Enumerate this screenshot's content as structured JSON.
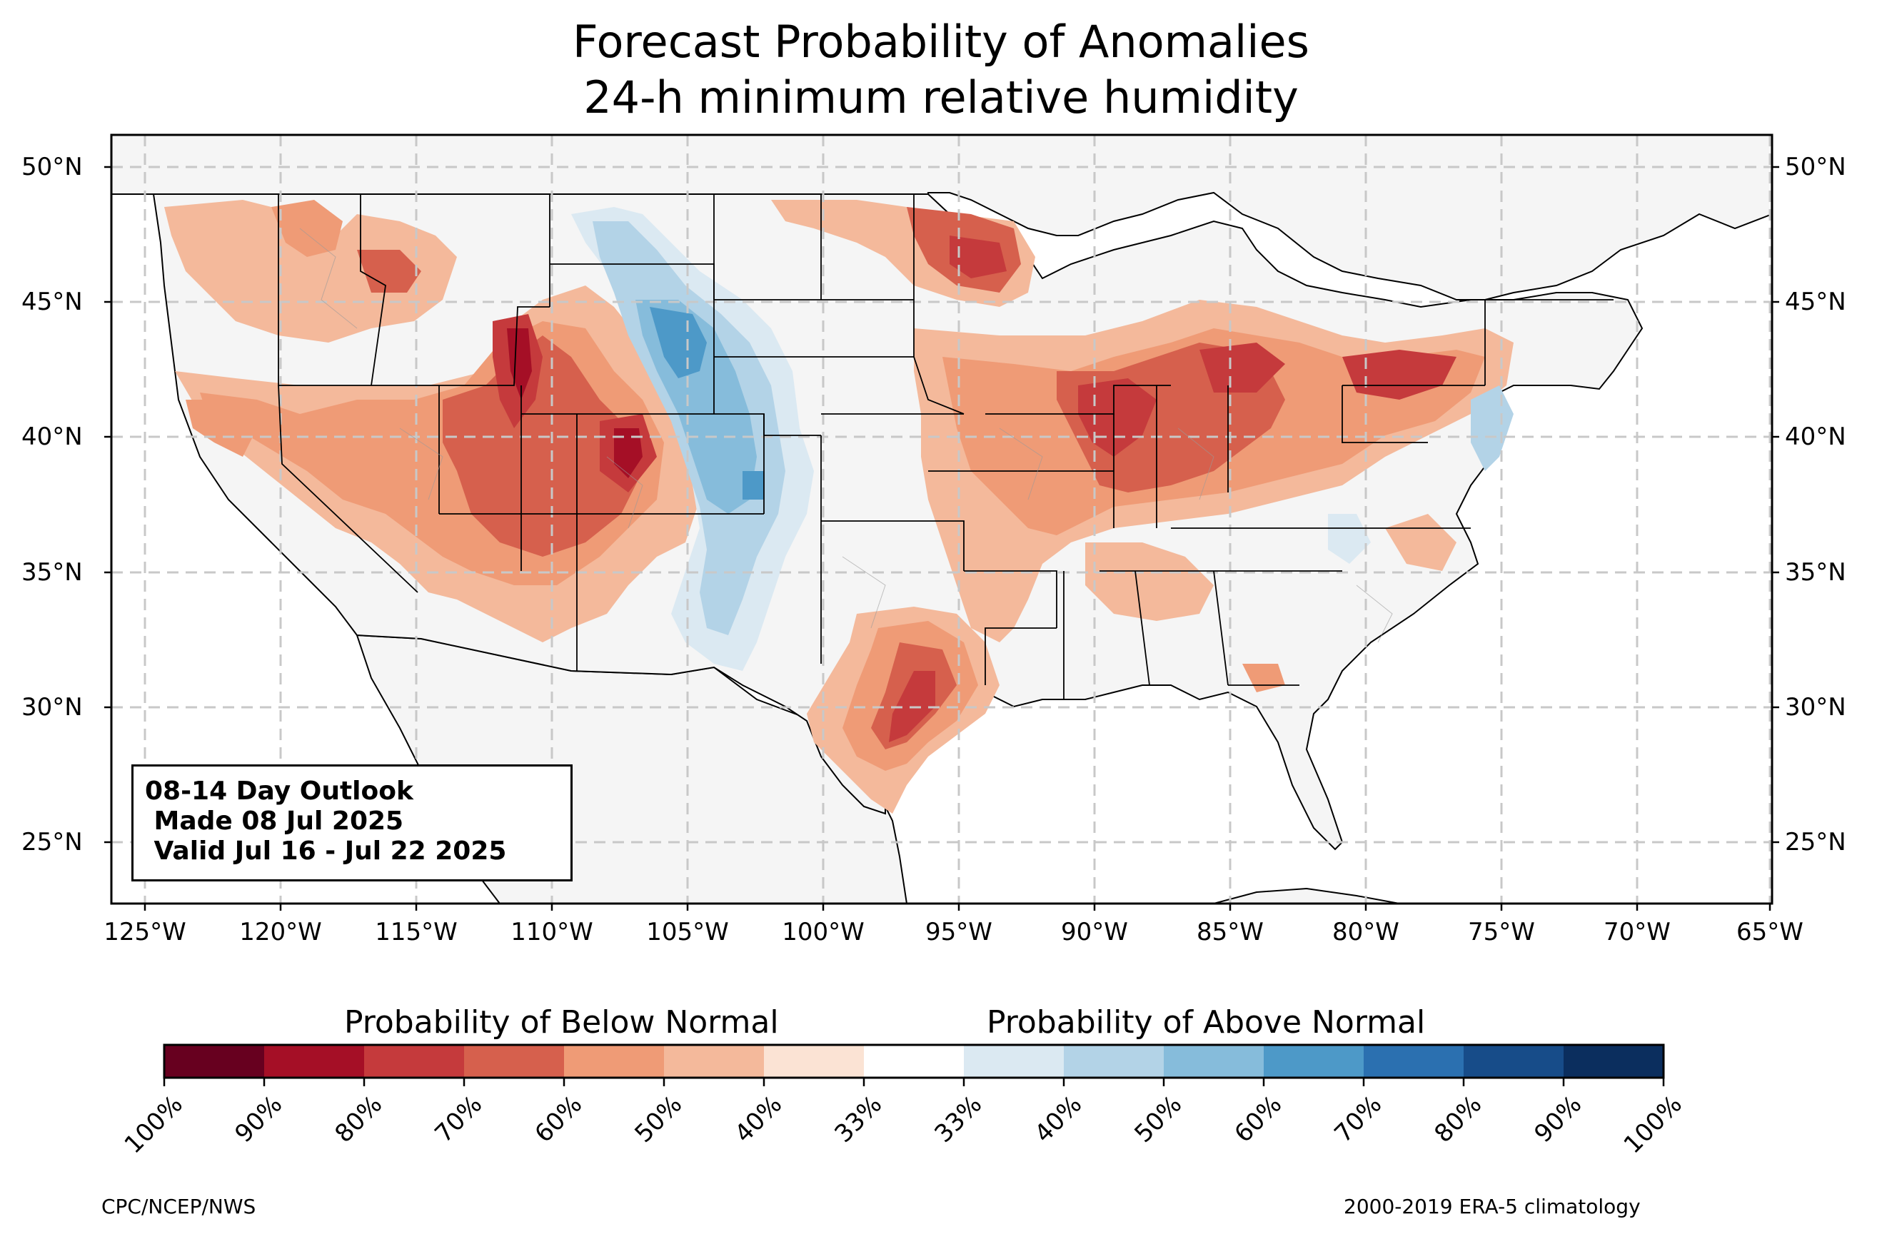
{
  "title": {
    "line1": "Forecast Probability of Anomalies",
    "line2": "24-h minimum relative humidity"
  },
  "latitude_labels": [
    "50°N",
    "45°N",
    "40°N",
    "35°N",
    "30°N",
    "25°N"
  ],
  "longitude_labels": [
    "125°W",
    "120°W",
    "115°W",
    "110°W",
    "105°W",
    "100°W",
    "95°W",
    "90°W",
    "85°W",
    "80°W",
    "75°W",
    "70°W",
    "65°W"
  ],
  "outlook": {
    "line1": "08-14 Day Outlook",
    "line2": " Made 08 Jul 2025",
    "line3": " Valid Jul 16 - Jul 22 2025"
  },
  "colorbar": {
    "below_label": "Probability of Below Normal",
    "above_label": "Probability of Above Normal",
    "ticks": [
      "100%",
      "90%",
      "80%",
      "70%",
      "60%",
      "50%",
      "40%",
      "33%",
      "33%",
      "40%",
      "50%",
      "60%",
      "70%",
      "80%",
      "90%",
      "100%"
    ],
    "colors": [
      "#67001f",
      "#a50f26",
      "#c53a3c",
      "#d6604d",
      "#ef9b76",
      "#f4b99b",
      "#fbe3d4",
      "#ffffff",
      "#dbe9f2",
      "#b3d3e7",
      "#86bcdb",
      "#4d99c8",
      "#2b70b0",
      "#174c89",
      "#0b2e5e"
    ]
  },
  "footer": {
    "left": "CPC/NCEP/NWS",
    "right": "2000-2019 ERA-5 climatology"
  },
  "colors": {
    "land": "#f5f5f5",
    "ocean": "#ffffff",
    "below_light": "#f4b99b",
    "below_mid": "#d6604d",
    "below_dark": "#b2182b",
    "above_light": "#b3d3e7",
    "above_mid": "#6aaed6",
    "above_dark": "#2b70b0"
  }
}
